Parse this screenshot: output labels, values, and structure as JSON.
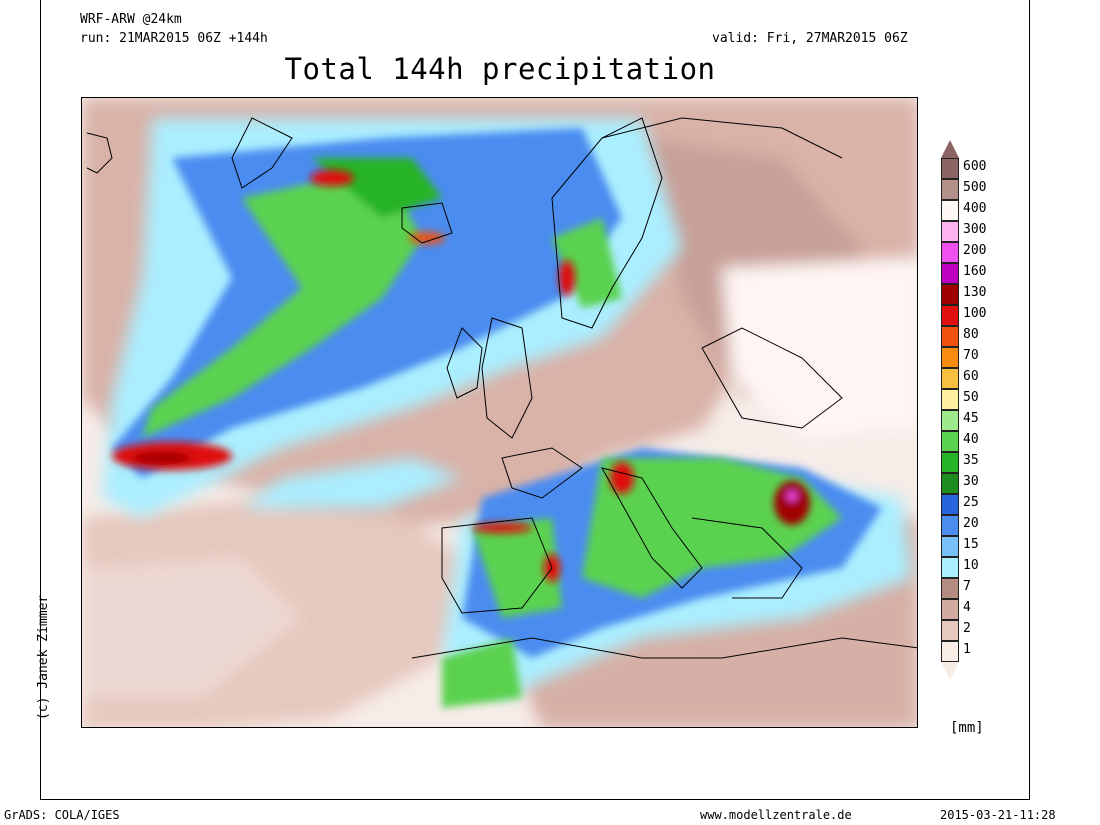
{
  "header": {
    "model": "WRF-ARW @24km",
    "run": "run: 21MAR2015 06Z +144h",
    "valid": "valid: Fri, 27MAR2015 06Z",
    "title": "Total 144h precipitation"
  },
  "credit": "(c) Janek Zimmer",
  "legend": {
    "unit": "[mm]",
    "levels": [
      {
        "label": "600",
        "color": "#8c6464"
      },
      {
        "label": "500",
        "color": "#b4908a"
      },
      {
        "label": "400",
        "color": "#fff6f6"
      },
      {
        "label": "300",
        "color": "#ffb4f0"
      },
      {
        "label": "200",
        "color": "#f050f0"
      },
      {
        "label": "160",
        "color": "#c000c0"
      },
      {
        "label": "130",
        "color": "#a00000"
      },
      {
        "label": "100",
        "color": "#e01010"
      },
      {
        "label": "80",
        "color": "#f05010"
      },
      {
        "label": "70",
        "color": "#f88c10"
      },
      {
        "label": "60",
        "color": "#f8c040"
      },
      {
        "label": "50",
        "color": "#fff0a0"
      },
      {
        "label": "45",
        "color": "#a0e88c"
      },
      {
        "label": "40",
        "color": "#5ad250"
      },
      {
        "label": "35",
        "color": "#28b428"
      },
      {
        "label": "30",
        "color": "#1e8c1e"
      },
      {
        "label": "25",
        "color": "#2864dc"
      },
      {
        "label": "20",
        "color": "#4c8cf0"
      },
      {
        "label": "15",
        "color": "#78c0f8"
      },
      {
        "label": "10",
        "color": "#aaf0ff"
      },
      {
        "label": "7",
        "color": "#b48c82"
      },
      {
        "label": "4",
        "color": "#d2aaa0"
      },
      {
        "label": "2",
        "color": "#e6c8be"
      },
      {
        "label": "1",
        "color": "#f8ece6"
      }
    ]
  },
  "footer": {
    "left": "GrADS: COLA/IGES",
    "center": "www.modellzentrale.de",
    "right": "2015-03-21-11:28"
  }
}
